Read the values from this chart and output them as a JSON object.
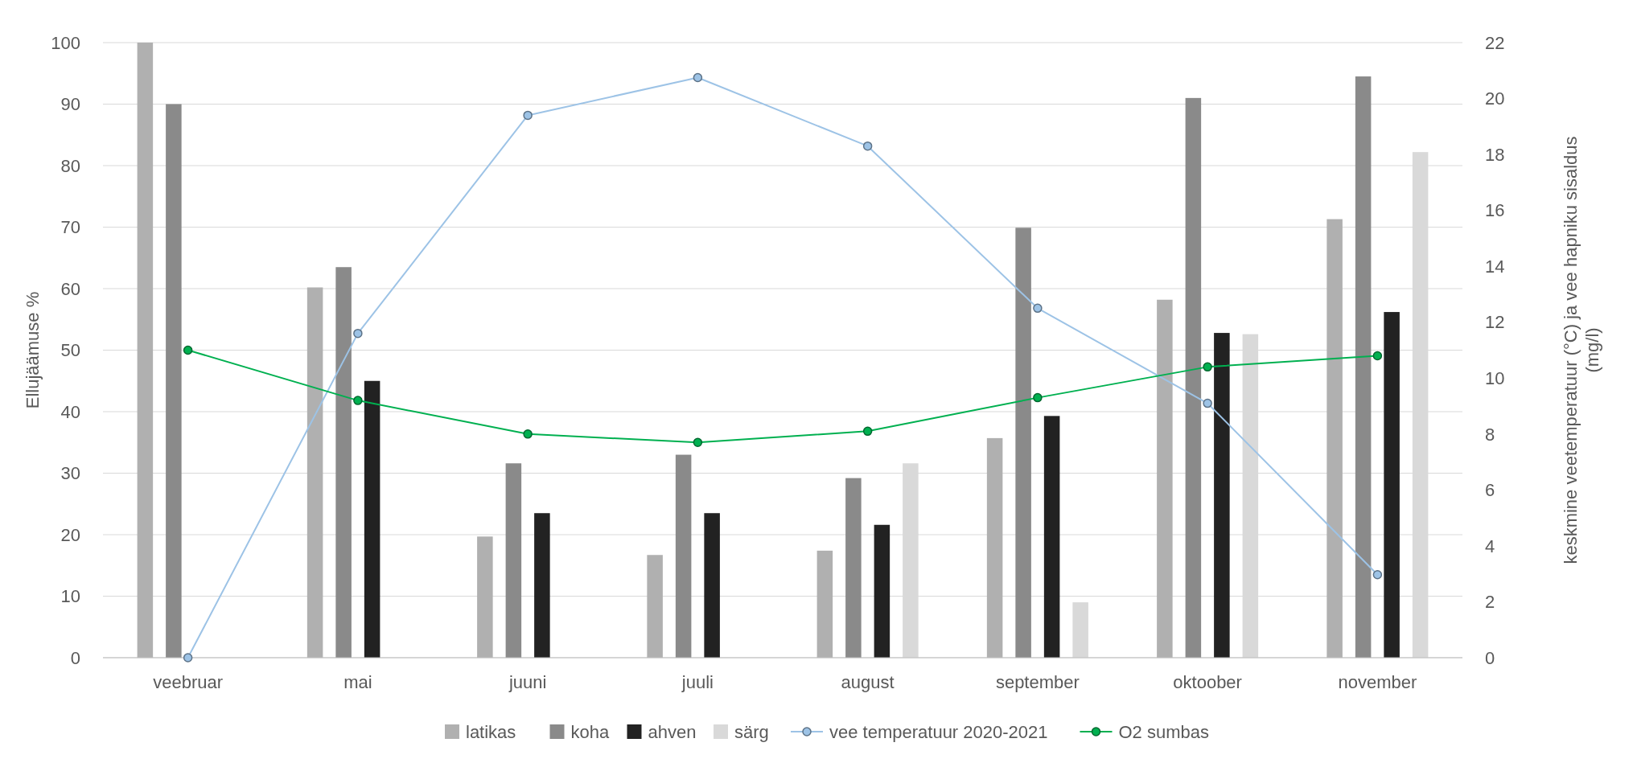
{
  "chart_data": {
    "type": "bar",
    "ylabel": "Ellujäämuse %",
    "y2label": "keskmine veetemperatuur (°C) ja vee hapniku sisaldus (mg/l)",
    "categories": [
      "veebruar",
      "mai",
      "juuni",
      "juuli",
      "august",
      "september",
      "oktoober",
      "november"
    ],
    "series": [
      {
        "name": "latikas",
        "color": "#b0b0b0",
        "values": [
          100,
          60.2,
          19.7,
          16.7,
          17.4,
          35.7,
          58.2,
          71.3
        ]
      },
      {
        "name": "koha",
        "color": "#8a8a8a",
        "values": [
          90,
          63.5,
          31.6,
          33,
          29.2,
          69.9,
          91,
          94.5
        ]
      },
      {
        "name": "ahven",
        "color": "#222222",
        "values": [
          null,
          45,
          23.5,
          23.5,
          21.6,
          39.3,
          52.8,
          56.2
        ]
      },
      {
        "name": "särg",
        "color": "#d9d9d9",
        "values": [
          null,
          null,
          null,
          null,
          31.6,
          9,
          52.6,
          82.2
        ]
      },
      {
        "name": "vee temperatuur 2020-2021",
        "type": "line",
        "axis": "y2",
        "color": "#9dc3e6",
        "values": [
          0,
          11.6,
          19.4,
          20.75,
          18.3,
          12.5,
          9.1,
          2.97
        ]
      },
      {
        "name": "O2 sumbas",
        "type": "line",
        "axis": "y2",
        "color": "#00b050",
        "values": [
          11,
          9.2,
          8,
          7.7,
          8.1,
          9.3,
          10.4,
          10.8
        ]
      }
    ],
    "ylim": [
      0,
      100
    ],
    "yticks": [
      0,
      10,
      20,
      30,
      40,
      50,
      60,
      70,
      80,
      90,
      100
    ],
    "y2lim": [
      0,
      22
    ],
    "y2ticks": [
      0,
      2,
      4,
      6,
      8,
      10,
      12,
      14,
      16,
      18,
      20,
      22
    ],
    "grid": "y",
    "legend": "bottom",
    "marker": "circle"
  }
}
